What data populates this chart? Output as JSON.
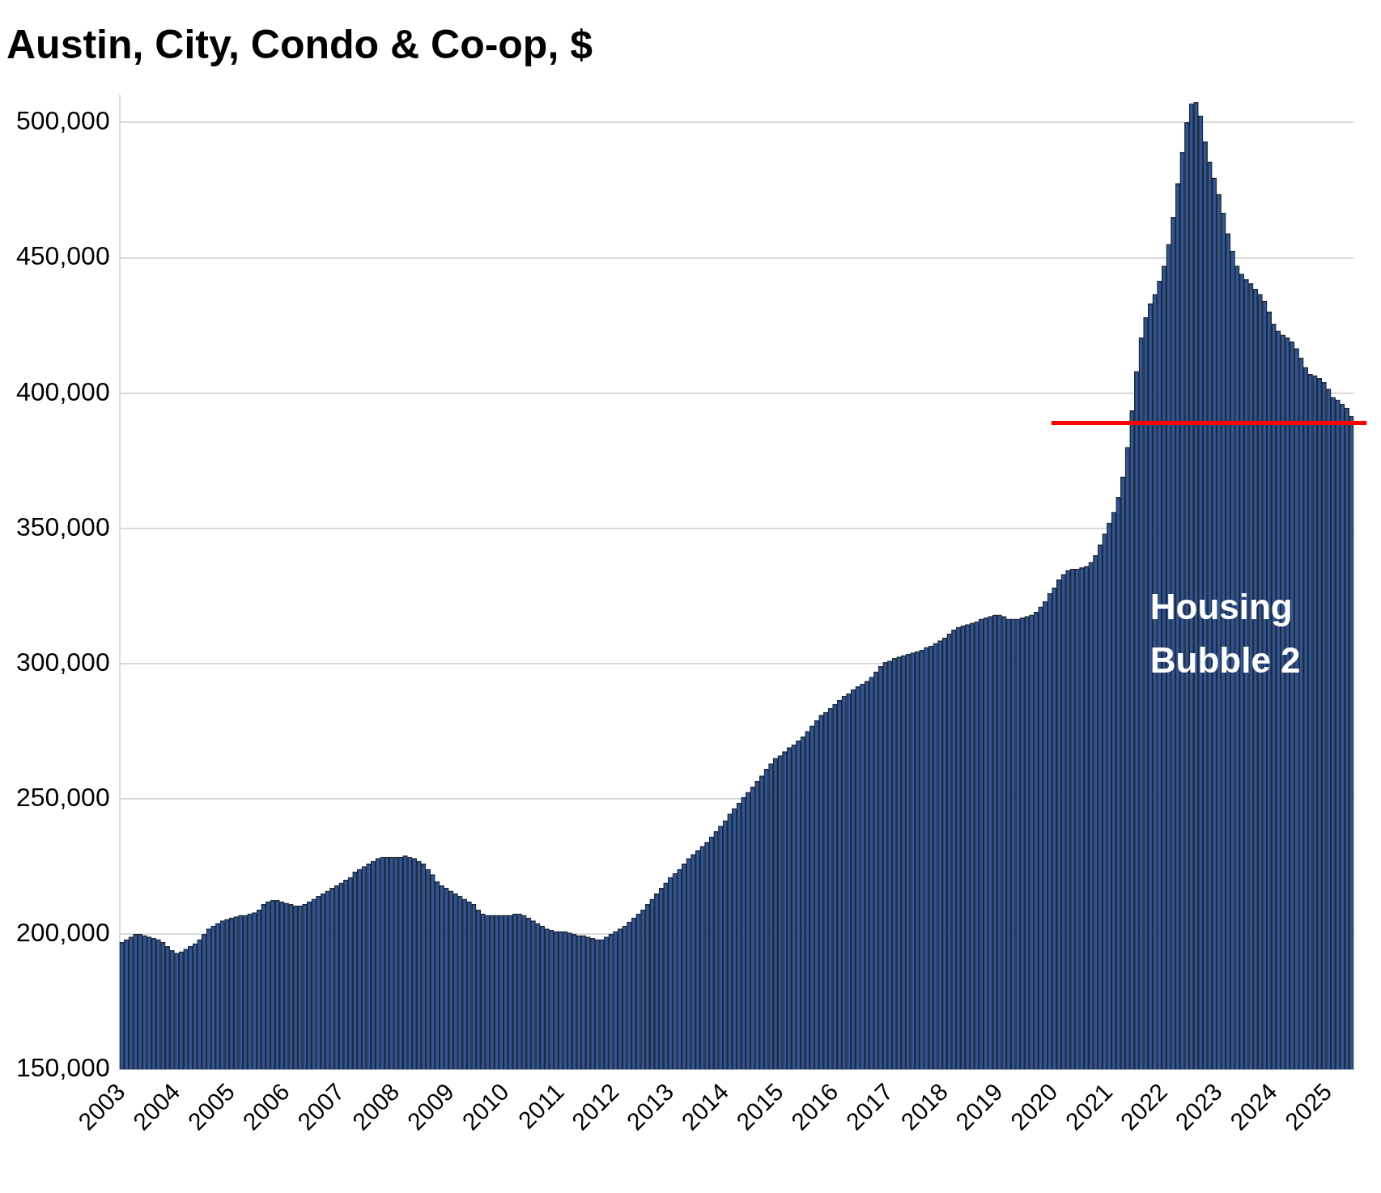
{
  "chart_data": {
    "type": "bar",
    "title": "Austin, City, Condo & Co-op, $",
    "categories": [
      "2003",
      null,
      null,
      null,
      null,
      null,
      null,
      null,
      null,
      null,
      null,
      null,
      "2004",
      null,
      null,
      null,
      null,
      null,
      null,
      null,
      null,
      null,
      null,
      null,
      "2005",
      null,
      null,
      null,
      null,
      null,
      null,
      null,
      null,
      null,
      null,
      null,
      "2006",
      null,
      null,
      null,
      null,
      null,
      null,
      null,
      null,
      null,
      null,
      null,
      "2007",
      null,
      null,
      null,
      null,
      null,
      null,
      null,
      null,
      null,
      null,
      null,
      "2008",
      null,
      null,
      null,
      null,
      null,
      null,
      null,
      null,
      null,
      null,
      null,
      "2009",
      null,
      null,
      null,
      null,
      null,
      null,
      null,
      null,
      null,
      null,
      null,
      "2010",
      null,
      null,
      null,
      null,
      null,
      null,
      null,
      null,
      null,
      null,
      null,
      "2011",
      null,
      null,
      null,
      null,
      null,
      null,
      null,
      null,
      null,
      null,
      null,
      "2012",
      null,
      null,
      null,
      null,
      null,
      null,
      null,
      null,
      null,
      null,
      null,
      "2013",
      null,
      null,
      null,
      null,
      null,
      null,
      null,
      null,
      null,
      null,
      null,
      "2014",
      null,
      null,
      null,
      null,
      null,
      null,
      null,
      null,
      null,
      null,
      null,
      "2015",
      null,
      null,
      null,
      null,
      null,
      null,
      null,
      null,
      null,
      null,
      null,
      "2016",
      null,
      null,
      null,
      null,
      null,
      null,
      null,
      null,
      null,
      null,
      null,
      "2017",
      null,
      null,
      null,
      null,
      null,
      null,
      null,
      null,
      null,
      null,
      null,
      "2018",
      null,
      null,
      null,
      null,
      null,
      null,
      null,
      null,
      null,
      null,
      null,
      "2019",
      null,
      null,
      null,
      null,
      null,
      null,
      null,
      null,
      null,
      null,
      null,
      "2020",
      null,
      null,
      null,
      null,
      null,
      null,
      null,
      null,
      null,
      null,
      null,
      "2021",
      null,
      null,
      null,
      null,
      null,
      null,
      null,
      null,
      null,
      null,
      null,
      "2022",
      null,
      null,
      null,
      null,
      null,
      null,
      null,
      null,
      null,
      null,
      null,
      "2023",
      null,
      null,
      null,
      null,
      null,
      null,
      null,
      null,
      null,
      null,
      null,
      "2024",
      null,
      null,
      null,
      null,
      null,
      null,
      null,
      null,
      null,
      null,
      null,
      "2025",
      null,
      null,
      null,
      null,
      null
    ],
    "series": [
      {
        "color": "#2f5597",
        "values": [
          197000,
          198000,
          199000,
          200000,
          200000,
          199500,
          199000,
          198500,
          198000,
          197000,
          195500,
          194000,
          193000,
          193500,
          194500,
          195500,
          196500,
          198000,
          200000,
          202000,
          203000,
          204000,
          205000,
          205500,
          206000,
          206500,
          207000,
          207000,
          207500,
          208000,
          209000,
          211000,
          212000,
          212500,
          212500,
          212000,
          211500,
          211000,
          210500,
          210500,
          211000,
          212000,
          213000,
          214000,
          215000,
          216000,
          217000,
          218000,
          219000,
          220000,
          221000,
          223000,
          224000,
          225000,
          226000,
          227000,
          228000,
          228500,
          228500,
          228500,
          228500,
          228500,
          229000,
          228500,
          228000,
          227000,
          226000,
          224000,
          222000,
          219500,
          218000,
          217000,
          216000,
          215000,
          214000,
          213000,
          212000,
          211000,
          209000,
          207500,
          207000,
          207000,
          207000,
          207000,
          207000,
          207000,
          207500,
          207500,
          207000,
          206000,
          205000,
          204000,
          203000,
          202000,
          201500,
          201000,
          201000,
          201000,
          200500,
          200000,
          199500,
          199500,
          199000,
          198500,
          198000,
          198000,
          199000,
          200000,
          201000,
          202000,
          203000,
          204500,
          206000,
          207500,
          209000,
          211000,
          213000,
          215000,
          217000,
          219000,
          221000,
          222500,
          224000,
          226000,
          228000,
          229500,
          231000,
          232500,
          234000,
          236000,
          238000,
          240000,
          242000,
          244500,
          246500,
          248500,
          250500,
          252500,
          254500,
          256500,
          258500,
          261000,
          263000,
          265000,
          266000,
          267500,
          269000,
          270000,
          271500,
          273000,
          275000,
          277000,
          279000,
          281000,
          282000,
          283500,
          285000,
          286500,
          288000,
          289000,
          290500,
          291500,
          292500,
          293500,
          295000,
          297000,
          299000,
          300500,
          301000,
          302000,
          302500,
          303000,
          303500,
          304000,
          304500,
          305000,
          306000,
          306500,
          307500,
          308500,
          309500,
          311000,
          312500,
          313500,
          314000,
          314500,
          315000,
          315500,
          316500,
          317000,
          317500,
          318000,
          318000,
          317500,
          316500,
          316500,
          316500,
          317000,
          317500,
          318000,
          319000,
          321000,
          323000,
          326000,
          328000,
          331000,
          333000,
          334500,
          335000,
          335000,
          335500,
          336000,
          337500,
          340000,
          344000,
          348000,
          352000,
          356000,
          361500,
          369000,
          380000,
          393500,
          408000,
          420500,
          428000,
          433000,
          436500,
          441500,
          447000,
          455000,
          465000,
          477500,
          489000,
          500000,
          507000,
          507500,
          502500,
          493000,
          485500,
          479500,
          473500,
          466500,
          459000,
          452500,
          447000,
          444000,
          442000,
          440500,
          438500,
          436500,
          434000,
          430000,
          425500,
          423000,
          421500,
          420500,
          419000,
          416500,
          413000,
          409500,
          407000,
          406500,
          405500,
          404000,
          401500,
          398500,
          397500,
          396000,
          394500,
          391500
        ]
      }
    ],
    "ylim": [
      150000,
      510000
    ],
    "yticks": [
      {
        "value": 150000,
        "label": "150,000"
      },
      {
        "value": 200000,
        "label": "200,000"
      },
      {
        "value": 250000,
        "label": "250,000"
      },
      {
        "value": 300000,
        "label": "300,000"
      },
      {
        "value": 350000,
        "label": "350,000"
      },
      {
        "value": 400000,
        "label": "400,000"
      },
      {
        "value": 450000,
        "label": "450,000"
      },
      {
        "value": 500000,
        "label": "500,000"
      }
    ],
    "grid": "y",
    "legend": false,
    "ref_lines": [
      {
        "axis": "y",
        "value": 389000,
        "color": "#ff0000"
      }
    ],
    "annotations": [
      "Housing Bubble 2"
    ]
  }
}
